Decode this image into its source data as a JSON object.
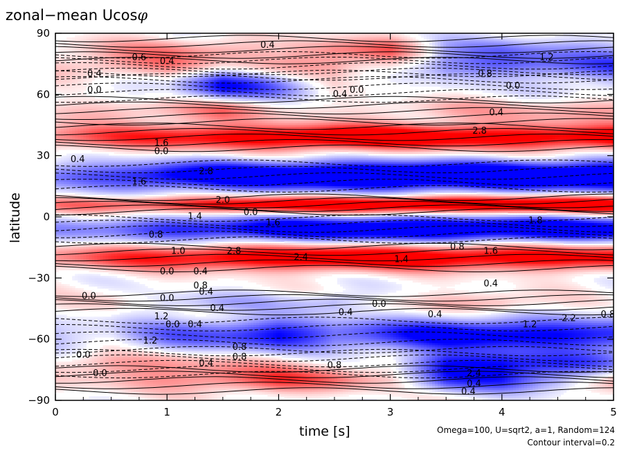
{
  "chart_data": {
    "type": "heatmap",
    "title": "zonal−mean Ucos",
    "title_symbol": "φ",
    "xlabel": "time [s]",
    "ylabel": "latitude",
    "xlim": [
      0,
      5
    ],
    "ylim": [
      -90,
      90
    ],
    "x_ticks": [
      "0",
      "1",
      "2",
      "3",
      "4",
      "5"
    ],
    "y_ticks": [
      "90",
      "60",
      "30",
      "0",
      "−30",
      "−60",
      "−90"
    ],
    "grid": false,
    "colorscale": {
      "negative": "#0000ff",
      "zero": "#ffffff",
      "positive": "#ff0000"
    },
    "contour_interval": 0.2,
    "bands": [
      {
        "lat": 82,
        "width": 6,
        "values": [
          0.2,
          0.6,
          0.8,
          0.8,
          0.4,
          1.0,
          1.2,
          -0.6,
          -1.0,
          -0.8,
          -0.6
        ]
      },
      {
        "lat": 74,
        "width": 6,
        "values": [
          0.4,
          0.8,
          1.0,
          0.4,
          0.6,
          0.8,
          0.2,
          -1.0,
          -1.2,
          -1.2,
          -1.4
        ]
      },
      {
        "lat": 64,
        "width": 7,
        "values": [
          0.0,
          -0.2,
          -0.4,
          -2.2,
          -1.2,
          0.0,
          0.0,
          -0.2,
          0.0,
          -0.4,
          -0.4
        ]
      },
      {
        "lat": 52,
        "width": 6,
        "values": [
          0.4,
          0.6,
          0.8,
          1.2,
          0.4,
          0.2,
          0.4,
          0.6,
          0.6,
          0.8,
          0.8
        ]
      },
      {
        "lat": 39,
        "width": 6,
        "values": [
          1.2,
          1.6,
          2.0,
          2.2,
          2.6,
          3.0,
          3.0,
          2.6,
          2.4,
          2.4,
          2.6
        ]
      },
      {
        "lat": 20,
        "width": 7,
        "values": [
          -1.2,
          -1.6,
          -2.4,
          -2.8,
          -3.0,
          -3.2,
          -3.4,
          -3.4,
          -3.4,
          -3.2,
          -3.4
        ]
      },
      {
        "lat": 6,
        "width": 4,
        "values": [
          1.0,
          1.4,
          1.8,
          2.2,
          2.6,
          2.8,
          3.0,
          3.0,
          3.0,
          3.0,
          3.0
        ]
      },
      {
        "lat": -6,
        "width": 6,
        "values": [
          -0.8,
          -1.2,
          -1.8,
          -2.2,
          -2.6,
          -2.8,
          -3.0,
          -3.0,
          -2.8,
          -2.8,
          -2.6
        ]
      },
      {
        "lat": -20,
        "width": 6,
        "values": [
          1.0,
          1.6,
          2.0,
          2.4,
          2.6,
          2.8,
          2.8,
          2.6,
          2.4,
          2.4,
          2.2
        ]
      },
      {
        "lat": -42,
        "width": 5,
        "values": [
          0.2,
          0.4,
          -0.4,
          -0.6,
          -0.4,
          -0.8,
          0.2,
          0.6,
          0.8,
          0.2,
          0.0
        ]
      },
      {
        "lat": -58,
        "width": 8,
        "values": [
          -0.6,
          -0.4,
          -1.2,
          -1.6,
          -2.2,
          -1.4,
          -1.8,
          -2.4,
          -2.4,
          -2.2,
          -2.0
        ]
      },
      {
        "lat": -72,
        "width": 6,
        "values": [
          0.4,
          0.8,
          0.8,
          0.6,
          0.4,
          0.2,
          0.0,
          -1.8,
          -2.0,
          -1.6,
          -1.0
        ]
      },
      {
        "lat": -80,
        "width": 6,
        "values": [
          0.2,
          0.4,
          0.8,
          1.2,
          1.6,
          1.2,
          0.4,
          -1.4,
          -1.6,
          -0.8,
          0.8
        ]
      }
    ],
    "band_times": [
      0,
      0.5,
      1,
      1.5,
      2,
      2.5,
      3,
      3.5,
      4,
      4.5,
      5
    ],
    "labels": [
      {
        "t": 0.75,
        "lat": 78,
        "text": "0.6"
      },
      {
        "t": 1.0,
        "lat": 76,
        "text": "0.4"
      },
      {
        "t": 1.9,
        "lat": 84,
        "text": "0.4"
      },
      {
        "t": 0.35,
        "lat": 70,
        "text": "0.4"
      },
      {
        "t": 0.35,
        "lat": 62,
        "text": "0.0"
      },
      {
        "t": 2.55,
        "lat": 60,
        "text": "0.4"
      },
      {
        "t": 2.7,
        "lat": 62,
        "text": "0.0"
      },
      {
        "t": 4.4,
        "lat": 78,
        "text": "1.2"
      },
      {
        "t": 3.85,
        "lat": 70,
        "text": "0.8"
      },
      {
        "t": 4.1,
        "lat": 64,
        "text": "0.0"
      },
      {
        "t": 3.95,
        "lat": 51,
        "text": "0.4"
      },
      {
        "t": 3.8,
        "lat": 42,
        "text": "2.8"
      },
      {
        "t": 0.95,
        "lat": 36,
        "text": "1.6"
      },
      {
        "t": 0.95,
        "lat": 32,
        "text": "0.0"
      },
      {
        "t": 0.2,
        "lat": 28,
        "text": "0.4"
      },
      {
        "t": 0.75,
        "lat": 17,
        "text": "1.6"
      },
      {
        "t": 1.35,
        "lat": 22,
        "text": "2.8"
      },
      {
        "t": 1.5,
        "lat": 8,
        "text": "2.0"
      },
      {
        "t": 1.75,
        "lat": 2,
        "text": "0.0"
      },
      {
        "t": 1.25,
        "lat": 0,
        "text": "1.4"
      },
      {
        "t": 1.95,
        "lat": -3,
        "text": "1.6"
      },
      {
        "t": 4.3,
        "lat": -2,
        "text": "1.8"
      },
      {
        "t": 0.9,
        "lat": -9,
        "text": "0.8"
      },
      {
        "t": 1.1,
        "lat": -17,
        "text": "1.0"
      },
      {
        "t": 1.6,
        "lat": -17,
        "text": "2.8"
      },
      {
        "t": 2.2,
        "lat": -20,
        "text": "2.4"
      },
      {
        "t": 3.1,
        "lat": -21,
        "text": "1.4"
      },
      {
        "t": 3.6,
        "lat": -15,
        "text": "0.8"
      },
      {
        "t": 3.9,
        "lat": -17,
        "text": "1.6"
      },
      {
        "t": 1.0,
        "lat": -27,
        "text": "0.0"
      },
      {
        "t": 1.3,
        "lat": -27,
        "text": "0.4"
      },
      {
        "t": 1.3,
        "lat": -34,
        "text": "0.8"
      },
      {
        "t": 3.9,
        "lat": -33,
        "text": "0.4"
      },
      {
        "t": 0.3,
        "lat": -39,
        "text": "0.0"
      },
      {
        "t": 1.0,
        "lat": -40,
        "text": "0.0"
      },
      {
        "t": 1.35,
        "lat": -37,
        "text": "0.4"
      },
      {
        "t": 1.45,
        "lat": -45,
        "text": "0.4"
      },
      {
        "t": 2.9,
        "lat": -43,
        "text": "0.0"
      },
      {
        "t": 2.6,
        "lat": -47,
        "text": "0.4"
      },
      {
        "t": 3.4,
        "lat": -48,
        "text": "0.4"
      },
      {
        "t": 0.95,
        "lat": -49,
        "text": "1.2"
      },
      {
        "t": 1.05,
        "lat": -53,
        "text": "0.0"
      },
      {
        "t": 1.25,
        "lat": -53,
        "text": "0.4"
      },
      {
        "t": 4.25,
        "lat": -53,
        "text": "1.2"
      },
      {
        "t": 4.6,
        "lat": -50,
        "text": "2.2"
      },
      {
        "t": 4.95,
        "lat": -48,
        "text": "0.8"
      },
      {
        "t": 0.85,
        "lat": -61,
        "text": "1.2"
      },
      {
        "t": 1.65,
        "lat": -64,
        "text": "0.8"
      },
      {
        "t": 0.25,
        "lat": -68,
        "text": "0.0"
      },
      {
        "t": 1.65,
        "lat": -69,
        "text": "0.8"
      },
      {
        "t": 1.35,
        "lat": -72,
        "text": "0.4"
      },
      {
        "t": 0.4,
        "lat": -77,
        "text": "0.0"
      },
      {
        "t": 2.5,
        "lat": -73,
        "text": "0.8"
      },
      {
        "t": 3.75,
        "lat": -77,
        "text": "2.4"
      },
      {
        "t": 3.75,
        "lat": -82,
        "text": "0.4"
      },
      {
        "t": 3.7,
        "lat": -86,
        "text": "0.4"
      }
    ]
  },
  "footer": {
    "params": "Omega=100, U=sqrt2, a=1, Random=124",
    "interval": "Contour interval=0.2"
  }
}
